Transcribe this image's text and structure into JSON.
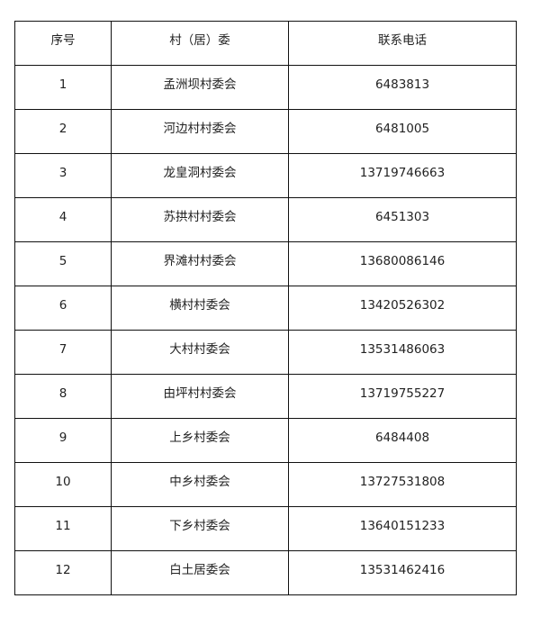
{
  "table": {
    "headers": [
      "序号",
      "村（居）委",
      "联系电话"
    ],
    "rows": [
      [
        "1",
        "孟洲坝村委会",
        "6483813"
      ],
      [
        "2",
        "河边村村委会",
        "6481005"
      ],
      [
        "3",
        "龙皇洞村委会",
        "13719746663"
      ],
      [
        "4",
        "苏拱村村委会",
        "6451303"
      ],
      [
        "5",
        "界滩村村委会",
        "13680086146"
      ],
      [
        "6",
        "横村村委会",
        "13420526302"
      ],
      [
        "7",
        "大村村委会",
        "13531486063"
      ],
      [
        "8",
        "由坪村村委会",
        "13719755227"
      ],
      [
        "9",
        "上乡村委会",
        "6484408"
      ],
      [
        "10",
        "中乡村委会",
        "13727531808"
      ],
      [
        "11",
        "下乡村委会",
        "13640151233"
      ],
      [
        "12",
        "白土居委会",
        "13531462416"
      ]
    ]
  }
}
